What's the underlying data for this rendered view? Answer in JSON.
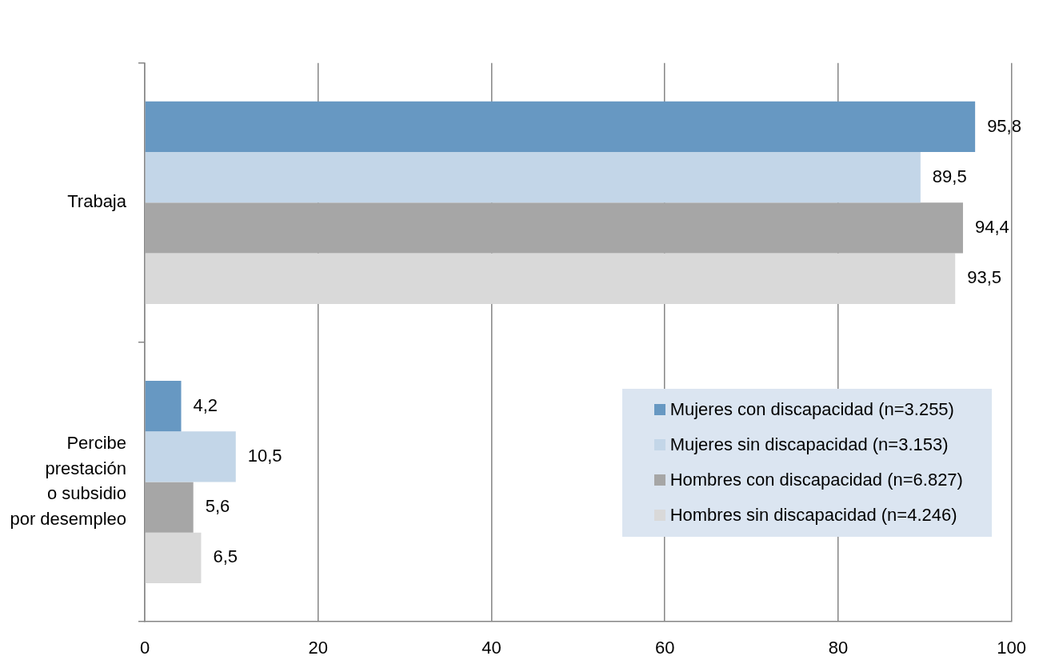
{
  "chart_data": {
    "type": "bar",
    "orientation": "horizontal",
    "categories": [
      "Trabaja",
      "Percibe\nprestación\no subsidio\npor desempleo"
    ],
    "series": [
      {
        "name": "Mujeres con discapacidad (n=3.255)",
        "color": "#6798c2",
        "values": [
          95.8,
          4.2
        ],
        "value_labels": [
          "95,8",
          "4,2"
        ]
      },
      {
        "name": "Mujeres sin discapacidad (n=3.153)",
        "color": "#c3d6e8",
        "values": [
          89.5,
          10.5
        ],
        "value_labels": [
          "89,5",
          "10,5"
        ]
      },
      {
        "name": "Hombres con discapacidad (n=6.827)",
        "color": "#a6a6a6",
        "values": [
          94.4,
          5.6
        ],
        "value_labels": [
          "94,4",
          "5,6"
        ]
      },
      {
        "name": "Hombres sin discapacidad (n=4.246)",
        "color": "#d9d9d9",
        "values": [
          93.5,
          6.5
        ],
        "value_labels": [
          "93,5",
          "6,5"
        ]
      }
    ],
    "xlim": [
      0,
      100
    ],
    "xticks": [
      0,
      20,
      40,
      60,
      80,
      100
    ],
    "grid": "x",
    "legend": "bottom right"
  }
}
